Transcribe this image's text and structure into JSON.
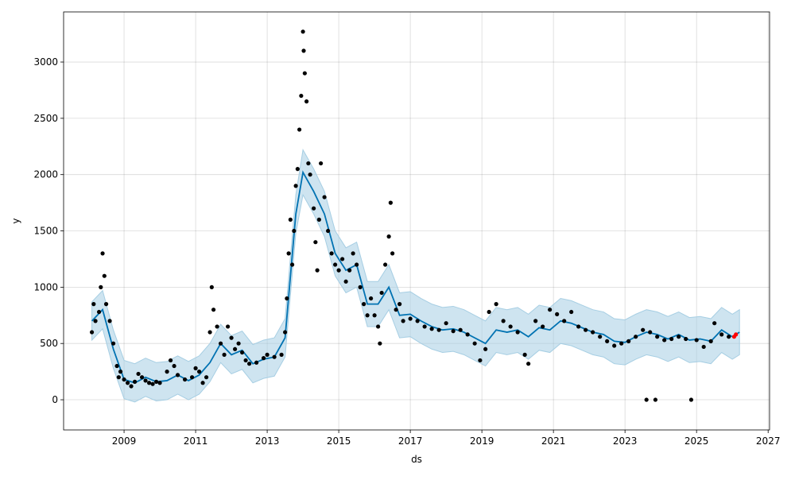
{
  "chart_data": {
    "type": "line",
    "xlabel": "ds",
    "ylabel": "y",
    "xlim": [
      2007.31,
      2027.04
    ],
    "ylim": [
      -268,
      3445
    ],
    "xticks": [
      2009,
      2011,
      2013,
      2015,
      2017,
      2019,
      2021,
      2023,
      2025,
      2027
    ],
    "yticks": [
      0,
      500,
      1000,
      1500,
      2000,
      2500,
      3000
    ],
    "grid": true,
    "x": [
      2008.1,
      2008.4,
      2008.7,
      2009.0,
      2009.3,
      2009.6,
      2009.9,
      2010.2,
      2010.5,
      2010.8,
      2011.1,
      2011.4,
      2011.7,
      2012.0,
      2012.3,
      2012.6,
      2012.9,
      2013.2,
      2013.5,
      2013.8,
      2014.0,
      2014.3,
      2014.6,
      2014.9,
      2015.2,
      2015.5,
      2015.8,
      2016.1,
      2016.4,
      2016.7,
      2017.0,
      2017.3,
      2017.6,
      2017.9,
      2018.2,
      2018.5,
      2018.8,
      2019.1,
      2019.4,
      2019.7,
      2020.0,
      2020.3,
      2020.6,
      2020.9,
      2021.2,
      2021.5,
      2021.8,
      2022.1,
      2022.4,
      2022.7,
      2023.0,
      2023.3,
      2023.6,
      2023.9,
      2024.2,
      2024.5,
      2024.8,
      2025.1,
      2025.4,
      2025.7,
      2026.0,
      2026.2
    ],
    "series": [
      {
        "type": "band",
        "color": "#a6cee3",
        "lower": [
          530,
          630,
          280,
          10,
          -20,
          30,
          -10,
          0,
          50,
          0,
          50,
          160,
          330,
          230,
          270,
          150,
          190,
          210,
          380,
          1480,
          1820,
          1650,
          1450,
          1100,
          950,
          1000,
          650,
          650,
          800,
          550,
          560,
          500,
          450,
          420,
          430,
          400,
          350,
          300,
          420,
          400,
          420,
          360,
          440,
          420,
          500,
          480,
          440,
          400,
          380,
          320,
          310,
          360,
          400,
          380,
          340,
          380,
          330,
          340,
          320,
          420,
          360,
          400
        ],
        "upper": [
          870,
          970,
          620,
          350,
          320,
          370,
          330,
          340,
          390,
          340,
          390,
          500,
          670,
          570,
          610,
          490,
          530,
          550,
          720,
          1820,
          2220,
          2050,
          1850,
          1500,
          1350,
          1400,
          1050,
          1050,
          1200,
          950,
          960,
          900,
          850,
          820,
          830,
          800,
          750,
          700,
          820,
          800,
          820,
          760,
          840,
          820,
          900,
          880,
          840,
          800,
          780,
          720,
          710,
          760,
          800,
          780,
          740,
          780,
          730,
          740,
          720,
          820,
          760,
          800
        ]
      },
      {
        "type": "line",
        "color": "#0072B2",
        "values": [
          700,
          800,
          450,
          180,
          150,
          200,
          160,
          170,
          220,
          170,
          220,
          330,
          500,
          400,
          440,
          320,
          360,
          380,
          550,
          1650,
          2020,
          1850,
          1650,
          1300,
          1150,
          1200,
          850,
          850,
          1000,
          750,
          760,
          700,
          650,
          620,
          630,
          600,
          550,
          500,
          620,
          600,
          620,
          560,
          640,
          620,
          700,
          680,
          640,
          600,
          580,
          520,
          510,
          560,
          600,
          580,
          540,
          580,
          530,
          540,
          520,
          620,
          560,
          600
        ]
      },
      {
        "type": "scatter",
        "color": "#000000",
        "x": [
          2008.1,
          2008.15,
          2008.2,
          2008.3,
          2008.35,
          2008.4,
          2008.45,
          2008.5,
          2008.6,
          2008.7,
          2008.8,
          2008.85,
          2008.9,
          2009.0,
          2009.1,
          2009.2,
          2009.3,
          2009.4,
          2009.5,
          2009.6,
          2009.7,
          2009.8,
          2009.9,
          2010.0,
          2010.2,
          2010.3,
          2010.4,
          2010.5,
          2010.7,
          2010.9,
          2011.0,
          2011.1,
          2011.2,
          2011.3,
          2011.4,
          2011.45,
          2011.5,
          2011.6,
          2011.7,
          2011.8,
          2011.9,
          2012.0,
          2012.1,
          2012.2,
          2012.3,
          2012.4,
          2012.5,
          2012.7,
          2012.9,
          2013.0,
          2013.2,
          2013.4,
          2013.5,
          2013.55,
          2013.6,
          2013.65,
          2013.7,
          2013.75,
          2013.8,
          2013.85,
          2013.9,
          2013.95,
          2014.0,
          2014.02,
          2014.05,
          2014.1,
          2014.15,
          2014.2,
          2014.3,
          2014.35,
          2014.4,
          2014.45,
          2014.5,
          2014.6,
          2014.7,
          2014.8,
          2014.9,
          2015.0,
          2015.1,
          2015.2,
          2015.3,
          2015.4,
          2015.5,
          2015.6,
          2015.7,
          2015.8,
          2015.9,
          2016.0,
          2016.1,
          2016.15,
          2016.2,
          2016.3,
          2016.4,
          2016.45,
          2016.5,
          2016.6,
          2016.7,
          2016.8,
          2017.0,
          2017.2,
          2017.4,
          2017.6,
          2017.8,
          2018.0,
          2018.2,
          2018.4,
          2018.6,
          2018.8,
          2018.95,
          2019.1,
          2019.2,
          2019.4,
          2019.6,
          2019.8,
          2020.0,
          2020.2,
          2020.3,
          2020.5,
          2020.7,
          2020.9,
          2021.1,
          2021.3,
          2021.5,
          2021.7,
          2021.9,
          2022.1,
          2022.3,
          2022.5,
          2022.7,
          2022.9,
          2023.1,
          2023.3,
          2023.5,
          2023.6,
          2023.7,
          2023.85,
          2023.9,
          2024.1,
          2024.3,
          2024.5,
          2024.7,
          2024.85,
          2025.0,
          2025.2,
          2025.4,
          2025.5,
          2025.7,
          2025.9
        ],
        "values": [
          600,
          850,
          700,
          780,
          1000,
          1300,
          1100,
          850,
          700,
          500,
          300,
          200,
          250,
          180,
          150,
          120,
          160,
          230,
          200,
          170,
          150,
          140,
          160,
          150,
          250,
          350,
          300,
          220,
          180,
          200,
          280,
          250,
          150,
          200,
          600,
          1000,
          800,
          650,
          500,
          400,
          650,
          550,
          450,
          500,
          420,
          350,
          320,
          330,
          370,
          400,
          380,
          400,
          600,
          900,
          1300,
          1600,
          1200,
          1500,
          1900,
          2050,
          2400,
          2700,
          3270,
          3100,
          2900,
          2650,
          2100,
          2000,
          1700,
          1400,
          1150,
          1600,
          2100,
          1800,
          1500,
          1300,
          1200,
          1150,
          1250,
          1050,
          1150,
          1300,
          1200,
          1000,
          850,
          750,
          900,
          750,
          650,
          500,
          950,
          1200,
          1450,
          1750,
          1300,
          800,
          850,
          700,
          720,
          700,
          650,
          630,
          620,
          680,
          610,
          620,
          580,
          500,
          350,
          450,
          780,
          850,
          700,
          650,
          600,
          400,
          320,
          700,
          650,
          800,
          760,
          700,
          780,
          650,
          620,
          600,
          560,
          520,
          480,
          500,
          520,
          560,
          620,
          0,
          600,
          0,
          560,
          530,
          540,
          560,
          540,
          0,
          530,
          470,
          520,
          680,
          580,
          560
        ]
      },
      {
        "type": "scatter",
        "color": "#ff0000",
        "x": [
          2026.05,
          2026.1
        ],
        "values": [
          560,
          580
        ]
      }
    ]
  }
}
